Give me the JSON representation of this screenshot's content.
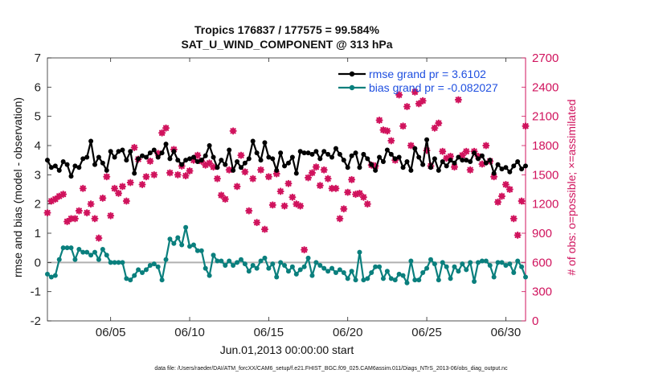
{
  "chart_data": {
    "type": "line",
    "title_line1": "Tropics 176837 / 177575 = 99.584%",
    "title_line2": "SAT_U_WIND_COMPONENT @ 313 hPa",
    "xlabel": "Jun.01,2013 00:00:00 start",
    "ylabel_left": "rmse and bias (model - observation)",
    "ylabel_right": "# of obs: o=possible; ×=assimilated",
    "footer": "data file: /Users/raeder/DAI/ATM_forcXX/CAM6_setup/f.e21.FHIST_BGC.f09_025.CAM6assim.011/Diags_NTrS_2013-06/obs_diag_output.nc",
    "xlim": [
      1.0,
      31.25
    ],
    "ylim_left": [
      -2,
      7
    ],
    "ylim_right": [
      0,
      2700
    ],
    "x_ticks": [
      5,
      10,
      15,
      20,
      25,
      30
    ],
    "x_tick_labels": [
      "06/05",
      "06/10",
      "06/15",
      "06/20",
      "06/25",
      "06/30"
    ],
    "y_ticks_left": [
      -2,
      -1,
      0,
      1,
      2,
      3,
      4,
      5,
      6,
      7
    ],
    "y_tick_labels_left": [
      "-2",
      "-1",
      "0",
      "1",
      "2",
      "3",
      "4",
      "5",
      "6",
      "7"
    ],
    "y_ticks_right": [
      0,
      300,
      600,
      900,
      1200,
      1500,
      1800,
      2100,
      2400,
      2700
    ],
    "y_tick_labels_right": [
      "0",
      "300",
      "600",
      "900",
      "1200",
      "1500",
      "1800",
      "2100",
      "2400",
      "2700"
    ],
    "legend": {
      "placement": "top-right",
      "entries": [
        "rmse grand pr = 3.6102",
        "bias grand pr = -0.082027"
      ]
    },
    "colors": {
      "rmse": "#000000",
      "bias": "#0a7f7d",
      "obs": "#d0135d",
      "legend_text": "#1f4fe0",
      "zero_line": "#b0b0b0",
      "axis": "#262626"
    },
    "series": [
      {
        "name": "rmse",
        "axis": "left",
        "x": [
          1.0,
          1.25,
          1.5,
          1.75,
          2.0,
          2.25,
          2.5,
          2.75,
          3.0,
          3.25,
          3.5,
          3.75,
          4.0,
          4.25,
          4.5,
          4.75,
          5.0,
          5.25,
          5.5,
          5.75,
          6.0,
          6.25,
          6.5,
          6.75,
          7.0,
          7.25,
          7.5,
          7.75,
          8.0,
          8.25,
          8.5,
          8.75,
          9.0,
          9.25,
          9.5,
          9.75,
          10.0,
          10.25,
          10.5,
          10.75,
          11.0,
          11.25,
          11.5,
          11.75,
          12.0,
          12.25,
          12.5,
          12.75,
          13.0,
          13.25,
          13.5,
          13.75,
          14.0,
          14.25,
          14.5,
          14.75,
          15.0,
          15.25,
          15.5,
          15.75,
          16.0,
          16.25,
          16.5,
          16.75,
          17.0,
          17.25,
          17.5,
          17.75,
          18.0,
          18.25,
          18.5,
          18.75,
          19.0,
          19.25,
          19.5,
          19.75,
          20.0,
          20.25,
          20.5,
          20.75,
          21.0,
          21.25,
          21.5,
          21.75,
          22.0,
          22.25,
          22.5,
          22.75,
          23.0,
          23.25,
          23.5,
          23.75,
          24.0,
          24.25,
          24.5,
          24.75,
          25.0,
          25.25,
          25.5,
          25.75,
          26.0,
          26.25,
          26.5,
          26.75,
          27.0,
          27.25,
          27.5,
          27.75,
          28.0,
          28.25,
          28.5,
          28.75,
          29.0,
          29.25,
          29.5,
          29.75,
          30.0,
          30.25,
          30.5,
          30.75,
          31.0,
          31.25
        ],
        "values": [
          3.5,
          3.25,
          3.3,
          3.15,
          3.45,
          3.35,
          2.95,
          3.3,
          3.25,
          3.55,
          3.6,
          4.15,
          3.35,
          3.6,
          3.4,
          3.15,
          3.8,
          3.6,
          3.8,
          3.85,
          3.5,
          3.8,
          3.05,
          3.55,
          3.65,
          3.6,
          3.75,
          3.85,
          3.6,
          3.75,
          4.05,
          3.55,
          3.8,
          3.5,
          3.35,
          3.5,
          3.55,
          3.6,
          3.45,
          3.5,
          3.65,
          4.0,
          3.6,
          3.25,
          3.5,
          3.35,
          3.85,
          3.15,
          3.45,
          3.25,
          3.4,
          3.55,
          4.15,
          3.75,
          3.5,
          4.1,
          3.6,
          3.55,
          3.15,
          3.75,
          3.3,
          3.4,
          3.6,
          3.05,
          3.8,
          3.75,
          3.75,
          3.7,
          3.8,
          3.55,
          3.8,
          3.7,
          3.6,
          3.9,
          3.7,
          3.5,
          3.25,
          3.65,
          3.75,
          3.25,
          3.7,
          3.55,
          3.35,
          3.15,
          3.6,
          3.45,
          3.85,
          3.7,
          3.55,
          3.6,
          3.25,
          3.45,
          3.15,
          3.9,
          3.6,
          3.35,
          4.2,
          3.25,
          3.55,
          3.15,
          3.45,
          3.3,
          3.5,
          3.4,
          3.6,
          3.5,
          3.5,
          3.45,
          3.75,
          3.55,
          3.65,
          3.4,
          3.5,
          3.05,
          3.35,
          3.2,
          3.25,
          3.1,
          3.3,
          3.45,
          3.2,
          3.3
        ]
      },
      {
        "name": "bias",
        "axis": "left",
        "x": [
          1.0,
          1.25,
          1.5,
          1.75,
          2.0,
          2.25,
          2.5,
          2.75,
          3.0,
          3.25,
          3.5,
          3.75,
          4.0,
          4.25,
          4.5,
          4.75,
          5.0,
          5.25,
          5.5,
          5.75,
          6.0,
          6.25,
          6.5,
          6.75,
          7.0,
          7.25,
          7.5,
          7.75,
          8.0,
          8.25,
          8.5,
          8.75,
          9.0,
          9.25,
          9.5,
          9.75,
          10.0,
          10.25,
          10.5,
          10.75,
          11.0,
          11.25,
          11.5,
          11.75,
          12.0,
          12.25,
          12.5,
          12.75,
          13.0,
          13.25,
          13.5,
          13.75,
          14.0,
          14.25,
          14.5,
          14.75,
          15.0,
          15.25,
          15.5,
          15.75,
          16.0,
          16.25,
          16.5,
          16.75,
          17.0,
          17.25,
          17.5,
          17.75,
          18.0,
          18.25,
          18.5,
          18.75,
          19.0,
          19.25,
          19.5,
          19.75,
          20.0,
          20.25,
          20.5,
          20.75,
          21.0,
          21.25,
          21.5,
          21.75,
          22.0,
          22.25,
          22.5,
          22.75,
          23.0,
          23.25,
          23.5,
          23.75,
          24.0,
          24.25,
          24.5,
          24.75,
          25.0,
          25.25,
          25.5,
          25.75,
          26.0,
          26.25,
          26.5,
          26.75,
          27.0,
          27.25,
          27.5,
          27.75,
          28.0,
          28.25,
          28.5,
          28.75,
          29.0,
          29.25,
          29.5,
          29.75,
          30.0,
          30.25,
          30.5,
          30.75,
          31.0,
          31.25
        ],
        "values": [
          -0.4,
          -0.5,
          -0.45,
          0.1,
          0.5,
          0.5,
          0.5,
          0.1,
          0.45,
          0.35,
          0.35,
          0.25,
          0.35,
          0.1,
          0.45,
          0.25,
          0.0,
          0.0,
          0.0,
          0.0,
          -0.55,
          -0.6,
          -0.45,
          -0.25,
          -0.35,
          -0.25,
          -0.1,
          -0.05,
          -0.15,
          -0.6,
          0.1,
          0.8,
          0.65,
          0.85,
          0.6,
          1.2,
          0.55,
          0.6,
          0.4,
          0.4,
          -0.2,
          -0.45,
          0.25,
          0.05,
          0.05,
          -0.1,
          0.05,
          -0.1,
          0.0,
          0.1,
          -0.05,
          -0.3,
          -0.1,
          -0.2,
          0.05,
          0.15,
          -0.2,
          -0.05,
          -0.5,
          0.0,
          -0.1,
          -0.3,
          -0.15,
          -0.4,
          -0.25,
          -0.15,
          0.15,
          -0.45,
          0.0,
          -0.1,
          -0.2,
          -0.3,
          -0.2,
          -0.35,
          -0.25,
          -0.35,
          -0.55,
          -0.3,
          -0.6,
          0.35,
          -0.6,
          -0.55,
          -0.35,
          -0.15,
          -0.15,
          -0.55,
          -0.3,
          -0.55,
          -0.6,
          -0.4,
          -0.45,
          -0.7,
          0.05,
          -0.6,
          -0.6,
          -0.35,
          -0.2,
          0.1,
          -0.05,
          -0.6,
          0.0,
          -0.15,
          -0.55,
          -0.15,
          -0.3,
          -0.05,
          -0.25,
          0.0,
          -0.65,
          0.0,
          0.05,
          0.05,
          -0.1,
          -0.5,
          0.0,
          0.0,
          -0.1,
          -0.05,
          -0.35,
          0.05,
          -0.15,
          -0.5
        ]
      },
      {
        "name": "obs_assimilated",
        "axis": "right",
        "x": [
          1.0,
          1.25,
          1.5,
          1.75,
          2.0,
          2.25,
          2.5,
          2.75,
          3.0,
          3.25,
          3.5,
          3.75,
          4.0,
          4.25,
          4.5,
          4.75,
          5.0,
          5.25,
          5.5,
          5.75,
          6.0,
          6.25,
          6.5,
          6.75,
          7.0,
          7.25,
          7.5,
          7.75,
          8.0,
          8.25,
          8.5,
          8.75,
          9.0,
          9.25,
          9.5,
          9.75,
          10.0,
          10.25,
          10.5,
          10.75,
          11.0,
          11.25,
          11.5,
          11.75,
          12.0,
          12.25,
          12.5,
          12.75,
          13.0,
          13.25,
          13.5,
          13.75,
          14.0,
          14.25,
          14.5,
          14.75,
          15.0,
          15.25,
          15.5,
          15.75,
          16.0,
          16.25,
          16.5,
          16.75,
          17.0,
          17.25,
          17.5,
          17.75,
          18.0,
          18.25,
          18.5,
          18.75,
          19.0,
          19.25,
          19.5,
          19.75,
          20.0,
          20.25,
          20.5,
          20.75,
          21.0,
          21.25,
          21.5,
          21.75,
          22.0,
          22.25,
          22.5,
          22.75,
          23.0,
          23.25,
          23.5,
          23.75,
          24.0,
          24.25,
          24.5,
          24.75,
          25.0,
          25.25,
          25.5,
          25.75,
          26.0,
          26.25,
          26.5,
          26.75,
          27.0,
          27.25,
          27.5,
          27.75,
          28.0,
          28.25,
          28.5,
          28.75,
          29.0,
          29.25,
          29.5,
          29.75,
          30.0,
          30.25,
          30.5,
          30.75,
          31.0,
          31.25
        ],
        "values": [
          1110,
          1230,
          1250,
          1280,
          1300,
          1020,
          1050,
          1050,
          1130,
          1360,
          1110,
          1200,
          1050,
          850,
          1260,
          1480,
          1080,
          1360,
          1310,
          1380,
          1230,
          1420,
          1780,
          1660,
          1400,
          1480,
          1640,
          1500,
          1720,
          1930,
          1980,
          1520,
          1760,
          1500,
          1590,
          1490,
          1540,
          1650,
          1700,
          1640,
          1600,
          1620,
          1580,
          1460,
          1290,
          1250,
          1550,
          1950,
          1380,
          1700,
          1530,
          1130,
          1460,
          1010,
          1550,
          940,
          1480,
          1190,
          1510,
          1330,
          1180,
          1410,
          1270,
          1200,
          1180,
          730,
          1470,
          1520,
          1580,
          1390,
          1550,
          1460,
          1360,
          1360,
          1050,
          1150,
          1320,
          1450,
          1300,
          1310,
          1270,
          1200,
          1600,
          1590,
          2060,
          1960,
          1950,
          1850,
          1650,
          2320,
          2000,
          2200,
          1800,
          2350,
          2230,
          2260,
          1750,
          1590,
          1980,
          2030,
          1740,
          1670,
          1690,
          1580,
          2270,
          1700,
          1740,
          1550,
          1740,
          1690,
          1610,
          1800,
          1640,
          1480,
          1220,
          1280,
          1400,
          1350,
          1050,
          880,
          1230,
          2000
        ]
      }
    ]
  }
}
